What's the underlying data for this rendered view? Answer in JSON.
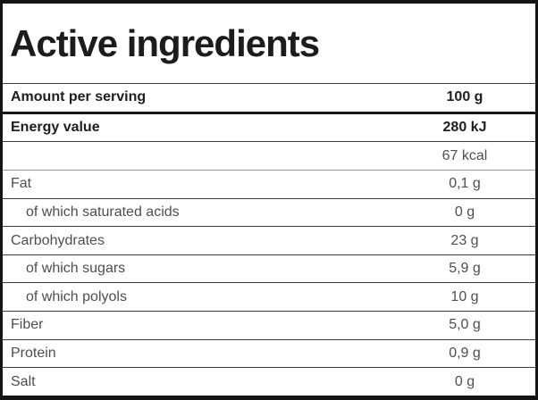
{
  "title": "Active ingredients",
  "colors": {
    "frame": "#141414",
    "separator": "#3c3c3c",
    "text_bold": "#1e1e1e",
    "text_regular": "#4e4e4e"
  },
  "table": {
    "rows": [
      {
        "label": "Amount per serving",
        "value": "100 g",
        "bold": true,
        "indent": false
      },
      {
        "label": "Energy value",
        "value": "280 kJ",
        "bold": true,
        "indent": false
      },
      {
        "label": "",
        "value": "67 kcal",
        "bold": false,
        "indent": false
      },
      {
        "label": "Fat",
        "value": "0,1 g",
        "bold": false,
        "indent": false
      },
      {
        "label": "of which saturated acids",
        "value": "0 g",
        "bold": false,
        "indent": true
      },
      {
        "label": "Carbohydrates",
        "value": "23 g",
        "bold": false,
        "indent": false
      },
      {
        "label": "of which sugars",
        "value": "5,9 g",
        "bold": false,
        "indent": true
      },
      {
        "label": "of which polyols",
        "value": "10 g",
        "bold": false,
        "indent": true
      },
      {
        "label": "Fiber",
        "value": "5,0 g",
        "bold": false,
        "indent": false
      },
      {
        "label": "Protein",
        "value": "0,9 g",
        "bold": false,
        "indent": false
      },
      {
        "label": "Salt",
        "value": "0 g",
        "bold": false,
        "indent": false
      }
    ]
  }
}
